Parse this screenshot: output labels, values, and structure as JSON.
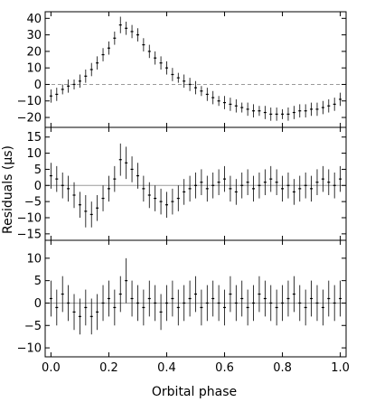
{
  "chart_data": [
    {
      "type": "scatter",
      "error_bars": true,
      "panel": "top",
      "xlim": [
        -0.02,
        1.02
      ],
      "ylim": [
        -26,
        44
      ],
      "yticks": [
        -20,
        -10,
        0,
        10,
        20,
        30,
        40
      ],
      "ytick_labels": [
        "−20",
        "−10",
        "0",
        "10",
        "20",
        "30",
        "40"
      ],
      "zero_line": true,
      "x": [
        0.0,
        0.02,
        0.04,
        0.06,
        0.08,
        0.1,
        0.12,
        0.14,
        0.16,
        0.18,
        0.2,
        0.22,
        0.24,
        0.26,
        0.28,
        0.3,
        0.32,
        0.34,
        0.36,
        0.38,
        0.4,
        0.42,
        0.44,
        0.46,
        0.48,
        0.5,
        0.52,
        0.54,
        0.56,
        0.58,
        0.6,
        0.62,
        0.64,
        0.66,
        0.68,
        0.7,
        0.72,
        0.74,
        0.76,
        0.78,
        0.8,
        0.82,
        0.84,
        0.86,
        0.88,
        0.9,
        0.92,
        0.94,
        0.96,
        0.98,
        1.0
      ],
      "y": [
        -7,
        -6,
        -3,
        -1,
        0,
        2,
        5,
        9,
        13,
        18,
        22,
        28,
        36,
        34,
        32,
        30,
        24,
        20,
        16,
        13,
        10,
        6,
        4,
        2,
        0,
        -2,
        -4,
        -6,
        -8,
        -10,
        -11,
        -12,
        -13,
        -14,
        -15,
        -16,
        -16,
        -17,
        -18,
        -18,
        -18,
        -18,
        -17,
        -16,
        -16,
        -15,
        -15,
        -14,
        -13,
        -12,
        -9
      ],
      "yerr": [
        4,
        4,
        3,
        4,
        3,
        4,
        4,
        4,
        4,
        4,
        4,
        4,
        5,
        4,
        4,
        4,
        4,
        4,
        4,
        4,
        4,
        4,
        3,
        4,
        4,
        4,
        3,
        4,
        4,
        3,
        4,
        4,
        4,
        3,
        4,
        4,
        3,
        4,
        4,
        4,
        3,
        4,
        4,
        4,
        4,
        4,
        4,
        4,
        4,
        4,
        4
      ]
    },
    {
      "type": "scatter",
      "error_bars": true,
      "panel": "middle",
      "xlim": [
        -0.02,
        1.02
      ],
      "ylim": [
        -17,
        18
      ],
      "yticks": [
        -15,
        -10,
        -5,
        0,
        5,
        10,
        15
      ],
      "ytick_labels": [
        "−15",
        "−10",
        "−5",
        "0",
        "5",
        "10",
        "15"
      ],
      "zero_line": true,
      "x": [
        0.0,
        0.02,
        0.04,
        0.06,
        0.08,
        0.1,
        0.12,
        0.14,
        0.16,
        0.18,
        0.2,
        0.22,
        0.24,
        0.26,
        0.28,
        0.3,
        0.32,
        0.34,
        0.36,
        0.38,
        0.4,
        0.42,
        0.44,
        0.46,
        0.48,
        0.5,
        0.52,
        0.54,
        0.56,
        0.58,
        0.6,
        0.62,
        0.64,
        0.66,
        0.68,
        0.7,
        0.72,
        0.74,
        0.76,
        0.78,
        0.8,
        0.82,
        0.84,
        0.86,
        0.88,
        0.9,
        0.92,
        0.94,
        0.96,
        0.98,
        1.0
      ],
      "y": [
        3,
        2,
        0,
        -1,
        -3,
        -6,
        -8,
        -9,
        -7,
        -4,
        -1,
        2,
        8,
        7,
        5,
        3,
        -1,
        -3,
        -4,
        -5,
        -6,
        -5,
        -4,
        -2,
        -1,
        0,
        1,
        -1,
        0,
        1,
        2,
        -1,
        -2,
        0,
        1,
        -1,
        0,
        1,
        2,
        1,
        -1,
        0,
        -2,
        -1,
        0,
        -1,
        1,
        2,
        1,
        0,
        2
      ],
      "yerr": [
        4,
        4,
        4,
        4,
        4,
        4,
        5,
        4,
        4,
        4,
        4,
        4,
        5,
        5,
        4,
        4,
        4,
        4,
        4,
        4,
        4,
        4,
        4,
        4,
        4,
        4,
        4,
        4,
        4,
        4,
        4,
        4,
        4,
        4,
        4,
        4,
        4,
        4,
        4,
        4,
        4,
        4,
        4,
        4,
        4,
        4,
        4,
        4,
        4,
        4,
        4
      ]
    },
    {
      "type": "scatter",
      "error_bars": true,
      "panel": "bottom",
      "xlim": [
        -0.02,
        1.02
      ],
      "ylim": [
        -12,
        14
      ],
      "yticks": [
        -10,
        -5,
        0,
        5,
        10
      ],
      "ytick_labels": [
        "−10",
        "−5",
        "0",
        "5",
        "10"
      ],
      "zero_line": true,
      "xticks": [
        0.0,
        0.2,
        0.4,
        0.6,
        0.8,
        1.0
      ],
      "xtick_labels": [
        "0.0",
        "0.2",
        "0.4",
        "0.6",
        "0.8",
        "1.0"
      ],
      "x": [
        0.0,
        0.02,
        0.04,
        0.06,
        0.08,
        0.1,
        0.12,
        0.14,
        0.16,
        0.18,
        0.2,
        0.22,
        0.24,
        0.26,
        0.28,
        0.3,
        0.32,
        0.34,
        0.36,
        0.38,
        0.4,
        0.42,
        0.44,
        0.46,
        0.48,
        0.5,
        0.52,
        0.54,
        0.56,
        0.58,
        0.6,
        0.62,
        0.64,
        0.66,
        0.68,
        0.7,
        0.72,
        0.74,
        0.76,
        0.78,
        0.8,
        0.82,
        0.84,
        0.86,
        0.88,
        0.9,
        0.92,
        0.94,
        0.96,
        0.98,
        1.0
      ],
      "y": [
        1,
        -1,
        2,
        0,
        -2,
        -3,
        -1,
        -3,
        -2,
        0,
        1,
        -1,
        2,
        5,
        1,
        0,
        -1,
        1,
        0,
        -2,
        0,
        1,
        -1,
        0,
        1,
        2,
        -1,
        0,
        1,
        0,
        -1,
        2,
        0,
        1,
        -1,
        0,
        2,
        1,
        0,
        -1,
        0,
        1,
        2,
        0,
        -1,
        1,
        0,
        -1,
        1,
        0,
        1
      ],
      "yerr": [
        4,
        4,
        4,
        4,
        4,
        4,
        4,
        4,
        4,
        4,
        4,
        4,
        4,
        5,
        4,
        4,
        4,
        4,
        4,
        4,
        4,
        4,
        4,
        4,
        4,
        4,
        4,
        4,
        4,
        4,
        4,
        4,
        4,
        4,
        4,
        4,
        4,
        4,
        4,
        4,
        4,
        4,
        4,
        4,
        4,
        4,
        4,
        4,
        4,
        4,
        4
      ]
    }
  ],
  "labels": {
    "xlabel": "Orbital phase",
    "ylabel": "Residuals (μs)"
  }
}
